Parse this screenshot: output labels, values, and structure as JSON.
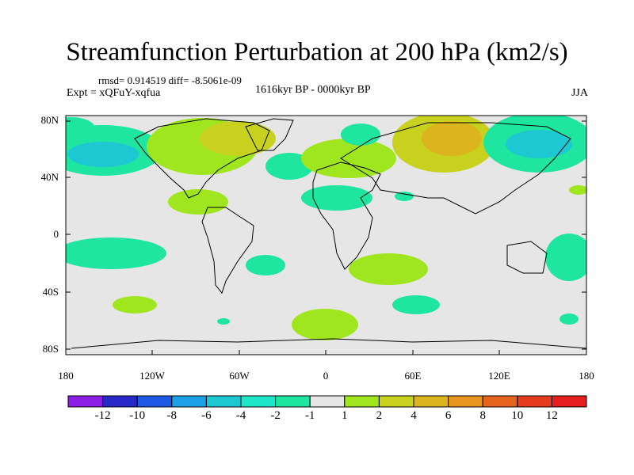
{
  "title": "Streamfunction Perturbation at 200 hPa (km2/s)",
  "stats": "rmsd= 0.914519  diff= -8.5061e-09",
  "experiment": "Expt = xQFuY-xqfua",
  "period": "1616kyr BP - 0000kyr BP",
  "season": "JJA",
  "map": {
    "lat_labels": [
      "80N",
      "40N",
      "0",
      "40S",
      "80S"
    ],
    "lon_labels": [
      "180",
      "120W",
      "60W",
      "0",
      "60E",
      "120E",
      "180"
    ],
    "background_color": "#e6e6e6"
  },
  "colorbar": {
    "labels": [
      "-12",
      "-10",
      "-8",
      "-6",
      "-4",
      "-2",
      "-1",
      "1",
      "2",
      "4",
      "6",
      "8",
      "10",
      "12"
    ],
    "colors": [
      "#8c1ee6",
      "#2828c8",
      "#1e5ae6",
      "#1ea0e6",
      "#1ec8d2",
      "#1ee6c8",
      "#1ee6a0",
      "#e6e6e6",
      "#a0e61e",
      "#c8d21e",
      "#dcb41e",
      "#e6961e",
      "#e6641e",
      "#e63c1e",
      "#e61e1e"
    ]
  }
}
